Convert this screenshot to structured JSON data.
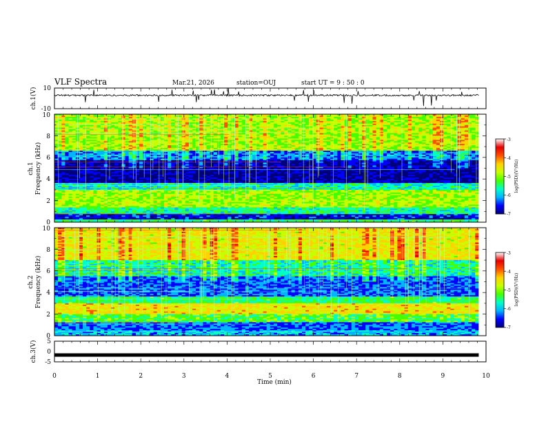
{
  "header": {
    "title": "VLF Spectra",
    "date": "Mar.21, 2026",
    "station": "station=OUJ",
    "start_ut": "start  UT =   9 : 50 : 0"
  },
  "chart_data": [
    {
      "type": "line",
      "panel": "ch1-waveform",
      "ylabel": "ch.1(V)",
      "ylim": [
        -10,
        10
      ],
      "y_ticks": [
        "10",
        "-10"
      ],
      "xlim": [
        0,
        10
      ],
      "series_level_V": 3,
      "data_extent_min": 9.83
    },
    {
      "type": "heatmap",
      "panel": "ch1-spectrogram",
      "ylabel_line1": "ch.1",
      "ylabel_line2": "Frequency  (kHz)",
      "ylim": [
        0,
        10
      ],
      "y_ticks": [
        "0",
        "2",
        "4",
        "6",
        "8",
        "10"
      ],
      "xlim": [
        0,
        10
      ],
      "data_extent_min": 9.83,
      "colorscale": [
        "#00007a",
        "#0000ff",
        "#00b4ff",
        "#00ffc8",
        "#46ff00",
        "#c8ff00",
        "#ffd200",
        "#ff5000",
        "#e60000",
        "#ffffff"
      ],
      "colorbar": {
        "label": "log(PSD)(V²/Hz)",
        "ticks": [
          "-3",
          "-4",
          "-5",
          "-6",
          "-7"
        ],
        "range": [
          -7,
          -3
        ]
      }
    },
    {
      "type": "heatmap",
      "panel": "ch2-spectrogram",
      "ylabel_line1": "ch.2",
      "ylabel_line2": "Frequency  (kHz)",
      "ylim": [
        0,
        10
      ],
      "y_ticks": [
        "0",
        "2",
        "4",
        "6",
        "8",
        "10"
      ],
      "xlim": [
        0,
        10
      ],
      "data_extent_min": 9.83,
      "colorscale": [
        "#00007a",
        "#0000ff",
        "#00b4ff",
        "#00ffc8",
        "#46ff00",
        "#c8ff00",
        "#ffd200",
        "#ff5000",
        "#e60000",
        "#ffffff"
      ],
      "colorbar": {
        "label": "log(PSD)(V²/Hz)",
        "ticks": [
          "-3",
          "-4",
          "-5",
          "-6",
          "-7"
        ],
        "range": [
          -7,
          -3
        ]
      }
    },
    {
      "type": "line",
      "panel": "ch3-waveform",
      "ylabel": "ch.3(V)",
      "ylim": [
        -5,
        5
      ],
      "y_ticks": [
        "5",
        "0",
        "-5"
      ],
      "xlim": [
        0,
        10
      ],
      "series_level_V": -1.7,
      "data_extent_min": 9.83
    }
  ],
  "x_axis": {
    "label": "Time  (min)",
    "ticks": [
      "0",
      "1",
      "2",
      "3",
      "4",
      "5",
      "6",
      "7",
      "8",
      "9",
      "10"
    ]
  }
}
